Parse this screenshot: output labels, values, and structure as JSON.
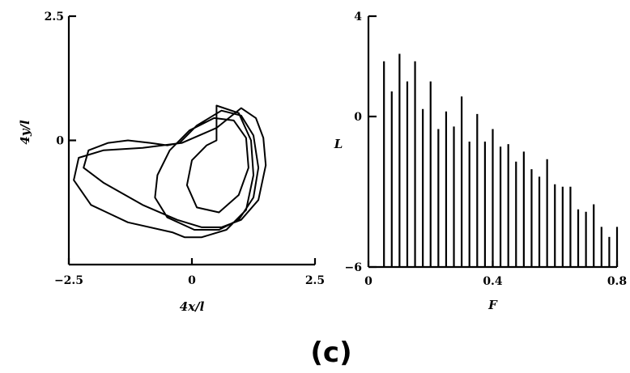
{
  "panel_label": "(c)",
  "chart_data": [
    {
      "type": "line",
      "title": "",
      "xlabel": "4x/l",
      "ylabel": "4y/l",
      "xlim": [
        -2.5,
        2.5
      ],
      "ylim": [
        -2.5,
        2.5
      ],
      "x_ticks": [
        {
          "value": -2.5,
          "label": "−2.5"
        },
        {
          "value": 0,
          "label": "0"
        },
        {
          "value": 2.5,
          "label": "2.5"
        }
      ],
      "y_ticks": [
        {
          "value": 2.5,
          "label": "2.5"
        },
        {
          "value": 0,
          "label": "0"
        }
      ],
      "grid": false,
      "series": [
        {
          "x": [
            0.5,
            0.95,
            1.2,
            1.25,
            1.1,
            0.7,
            0.2,
            -0.15,
            -0.4,
            -1.3,
            -2.05,
            -2.4,
            -2.3,
            -1.8,
            -1.0,
            -0.2,
            0.5,
            1.0,
            1.3,
            1.45,
            1.5,
            1.35,
            1.0,
            0.6,
            0.2,
            -0.3,
            -1.0,
            -1.8,
            -2.2,
            -2.1,
            -1.7,
            -1.3,
            -0.85,
            -0.5,
            -0.25,
            0.1,
            0.6,
            1.0,
            1.25,
            1.35,
            1.25,
            0.95,
            0.55,
            0.05,
            -0.5,
            -0.75,
            -0.7,
            -0.45,
            -0.05,
            0.45,
            0.85,
            1.1,
            1.15,
            0.95,
            0.55,
            0.1,
            -0.1,
            0.0,
            0.3,
            0.5
          ],
          "y": [
            0.7,
            0.55,
            0.0,
            -0.7,
            -1.4,
            -1.8,
            -1.95,
            -1.95,
            -1.85,
            -1.65,
            -1.3,
            -0.8,
            -0.35,
            -0.2,
            -0.15,
            -0.05,
            0.25,
            0.65,
            0.45,
            0.05,
            -0.5,
            -1.2,
            -1.6,
            -1.75,
            -1.75,
            -1.6,
            -1.3,
            -0.85,
            -0.55,
            -0.2,
            -0.05,
            0.0,
            -0.05,
            -0.1,
            -0.05,
            0.3,
            0.6,
            0.5,
            0.1,
            -0.55,
            -1.15,
            -1.6,
            -1.8,
            -1.8,
            -1.55,
            -1.15,
            -0.7,
            -0.2,
            0.2,
            0.45,
            0.4,
            0.05,
            -0.55,
            -1.1,
            -1.45,
            -1.35,
            -0.9,
            -0.4,
            -0.1,
            0.0
          ]
        }
      ]
    },
    {
      "type": "bar",
      "title": "",
      "xlabel": "F",
      "ylabel": "L",
      "xlim": [
        0,
        0.8
      ],
      "ylim": [
        -6,
        4
      ],
      "x_ticks": [
        {
          "value": 0,
          "label": "0"
        },
        {
          "value": 0.4,
          "label": "0.4"
        },
        {
          "value": 0.8,
          "label": "0.8"
        }
      ],
      "y_ticks": [
        {
          "value": 4,
          "label": "4"
        },
        {
          "value": 0,
          "label": "0"
        },
        {
          "value": -6,
          "label": "−6"
        }
      ],
      "grid": false,
      "baseline": -6,
      "x": [
        0.05,
        0.075,
        0.1,
        0.125,
        0.15,
        0.175,
        0.2,
        0.225,
        0.25,
        0.275,
        0.3,
        0.325,
        0.35,
        0.375,
        0.4,
        0.425,
        0.45,
        0.475,
        0.5,
        0.525,
        0.55,
        0.575,
        0.6,
        0.625,
        0.65,
        0.675,
        0.7,
        0.725,
        0.75,
        0.775,
        0.8
      ],
      "values": [
        2.2,
        1.0,
        2.5,
        1.4,
        2.2,
        0.3,
        1.4,
        -0.5,
        0.2,
        -0.4,
        0.8,
        -1.0,
        0.1,
        -1.0,
        -0.5,
        -1.2,
        -1.1,
        -1.8,
        -1.4,
        -2.1,
        -2.4,
        -1.7,
        -2.7,
        -2.8,
        -2.8,
        -3.7,
        -3.8,
        -3.5,
        -4.4,
        -4.8,
        -4.4
      ]
    }
  ]
}
